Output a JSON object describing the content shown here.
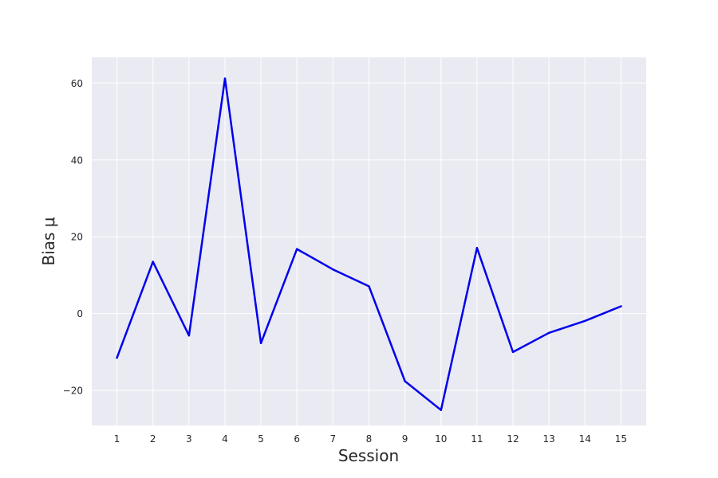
{
  "chart_data": {
    "type": "line",
    "title": "",
    "xlabel": "Session",
    "ylabel": "Bias μ",
    "x": [
      1,
      2,
      3,
      4,
      5,
      6,
      7,
      8,
      9,
      10,
      11,
      12,
      13,
      14,
      15
    ],
    "series": [
      {
        "values": [
          -11.5,
          13.5,
          -5.7,
          61.2,
          -7.7,
          16.8,
          11.5,
          7.1,
          -17.6,
          -25.1,
          17.1,
          -10.0,
          -5.0,
          -1.9,
          1.9
        ],
        "color": "#0000ee"
      }
    ],
    "xticks": [
      "1",
      "2",
      "3",
      "4",
      "5",
      "6",
      "7",
      "8",
      "9",
      "10",
      "11",
      "12",
      "13",
      "14",
      "15"
    ],
    "yticks": [
      "−20",
      "0",
      "20",
      "40",
      "60"
    ],
    "ytick_values": [
      -20,
      0,
      20,
      40,
      60
    ],
    "xlim": [
      0.3,
      15.7
    ],
    "ylim": [
      -29.1,
      66.7
    ],
    "grid": true,
    "style": {
      "axes_bg": "#eaeaf2",
      "grid_color": "#ffffff"
    }
  }
}
